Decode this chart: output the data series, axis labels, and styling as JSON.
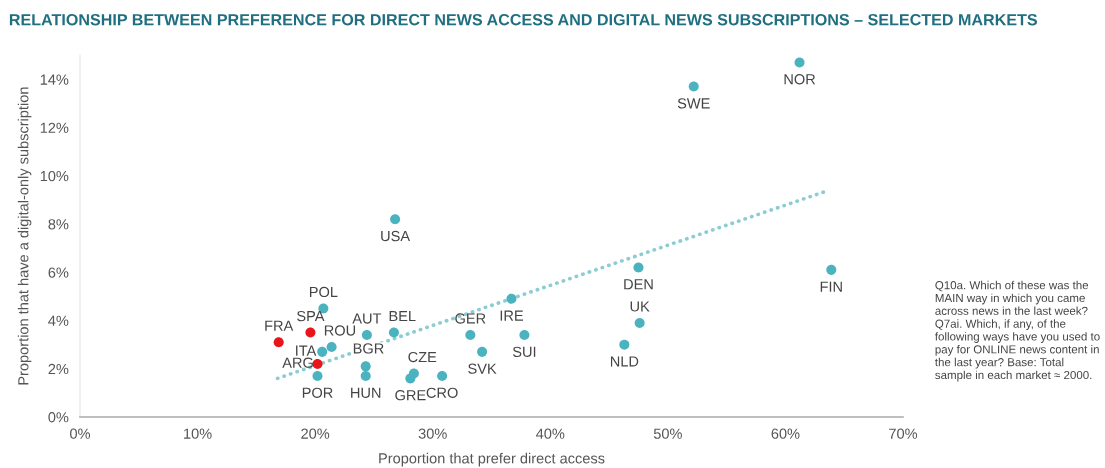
{
  "chart_data": {
    "type": "scatter",
    "title": "RELATIONSHIP BETWEEN PREFERENCE FOR DIRECT NEWS ACCESS AND DIGITAL NEWS SUBSCRIPTIONS – SELECTED MARKETS",
    "xlabel": "Proportion that prefer direct access",
    "ylabel": "Proportion that have a digital-only subscription",
    "xlim": [
      0,
      70
    ],
    "xticks": [
      {
        "value": 0,
        "label": "0%"
      },
      {
        "value": 10,
        "label": "10%"
      },
      {
        "value": 20,
        "label": "20%"
      },
      {
        "value": 30,
        "label": "30%"
      },
      {
        "value": 40,
        "label": "40%"
      },
      {
        "value": 50,
        "label": "50%"
      },
      {
        "value": 60,
        "label": "60%"
      },
      {
        "value": 70,
        "label": "70%"
      }
    ],
    "ylim": [
      0,
      15
    ],
    "yticks": [
      {
        "value": 0,
        "label": "0%"
      },
      {
        "value": 2,
        "label": "2%"
      },
      {
        "value": 4,
        "label": "4%"
      },
      {
        "value": 6,
        "label": "6%"
      },
      {
        "value": 8,
        "label": "8%"
      },
      {
        "value": 10,
        "label": "10%"
      },
      {
        "value": 12,
        "label": "12%"
      },
      {
        "value": 14,
        "label": "14%"
      }
    ],
    "grid": false,
    "legend": false,
    "marker": "circle",
    "series": [
      {
        "color": "#4bb3bf",
        "x": [
          61.2,
          52.2,
          26.8,
          47.5,
          63.9,
          20.7,
          36.7,
          47.6,
          46.3,
          37.8,
          33.2,
          34.2,
          26.7,
          24.4,
          21.4,
          20.6,
          20.2,
          24.3,
          24.3,
          28.4,
          28.1,
          30.8
        ],
        "values": [
          14.7,
          13.7,
          8.2,
          6.2,
          6.1,
          4.5,
          4.9,
          3.9,
          3.0,
          3.4,
          3.4,
          2.7,
          3.5,
          3.4,
          2.9,
          2.7,
          1.7,
          2.1,
          1.7,
          1.8,
          1.6,
          1.7
        ]
      },
      {
        "color": "#e8161b",
        "x": [
          19.6,
          16.9,
          20.2
        ],
        "values": [
          3.5,
          3.1,
          2.2
        ]
      },
      {
        "type": "line",
        "line_style": "dotted",
        "marker": "none",
        "color": "#8ccdd3",
        "x": [
          16.8,
          63.7
        ],
        "values": [
          1.6,
          9.4
        ]
      }
    ],
    "annotations": [
      {
        "text": "NOR",
        "x": 61.2,
        "y": 14.7
      },
      {
        "text": "SWE",
        "x": 52.2,
        "y": 13.7
      },
      {
        "text": "USA",
        "x": 26.8,
        "y": 8.2
      },
      {
        "text": "DEN",
        "x": 47.5,
        "y": 6.2
      },
      {
        "text": "FIN",
        "x": 63.9,
        "y": 6.1
      },
      {
        "text": "POL",
        "x": 20.7,
        "y": 4.5
      },
      {
        "text": "IRE",
        "x": 36.7,
        "y": 4.9
      },
      {
        "text": "UK",
        "x": 47.6,
        "y": 3.9
      },
      {
        "text": "NLD",
        "x": 46.3,
        "y": 3.0
      },
      {
        "text": "SUI",
        "x": 37.8,
        "y": 3.4
      },
      {
        "text": "GER",
        "x": 33.2,
        "y": 3.4
      },
      {
        "text": "SVK",
        "x": 34.2,
        "y": 2.7
      },
      {
        "text": "BEL",
        "x": 26.7,
        "y": 3.5
      },
      {
        "text": "AUT",
        "x": 24.4,
        "y": 3.4
      },
      {
        "text": "ROU",
        "x": 21.4,
        "y": 2.9
      },
      {
        "text": "ITA",
        "x": 20.6,
        "y": 2.7
      },
      {
        "text": "POR",
        "x": 20.2,
        "y": 1.7
      },
      {
        "text": "BGR",
        "x": 24.3,
        "y": 2.1
      },
      {
        "text": "HUN",
        "x": 24.3,
        "y": 1.7
      },
      {
        "text": "CZE",
        "x": 28.4,
        "y": 1.8
      },
      {
        "text": "GRE",
        "x": 28.1,
        "y": 1.6
      },
      {
        "text": "CRO",
        "x": 30.8,
        "y": 1.7
      },
      {
        "text": "SPA",
        "x": 19.6,
        "y": 3.5
      },
      {
        "text": "FRA",
        "x": 16.9,
        "y": 3.1
      },
      {
        "text": "ARG",
        "x": 20.2,
        "y": 2.2
      },
      "Q10a. Which of these was the MAIN way in which you came across news in the last week? Q7ai. Which, if any, of the following ways have you used to pay for ONLINE news content in the last year? Base: Total sample in each market ≈ 2000."
    ]
  }
}
